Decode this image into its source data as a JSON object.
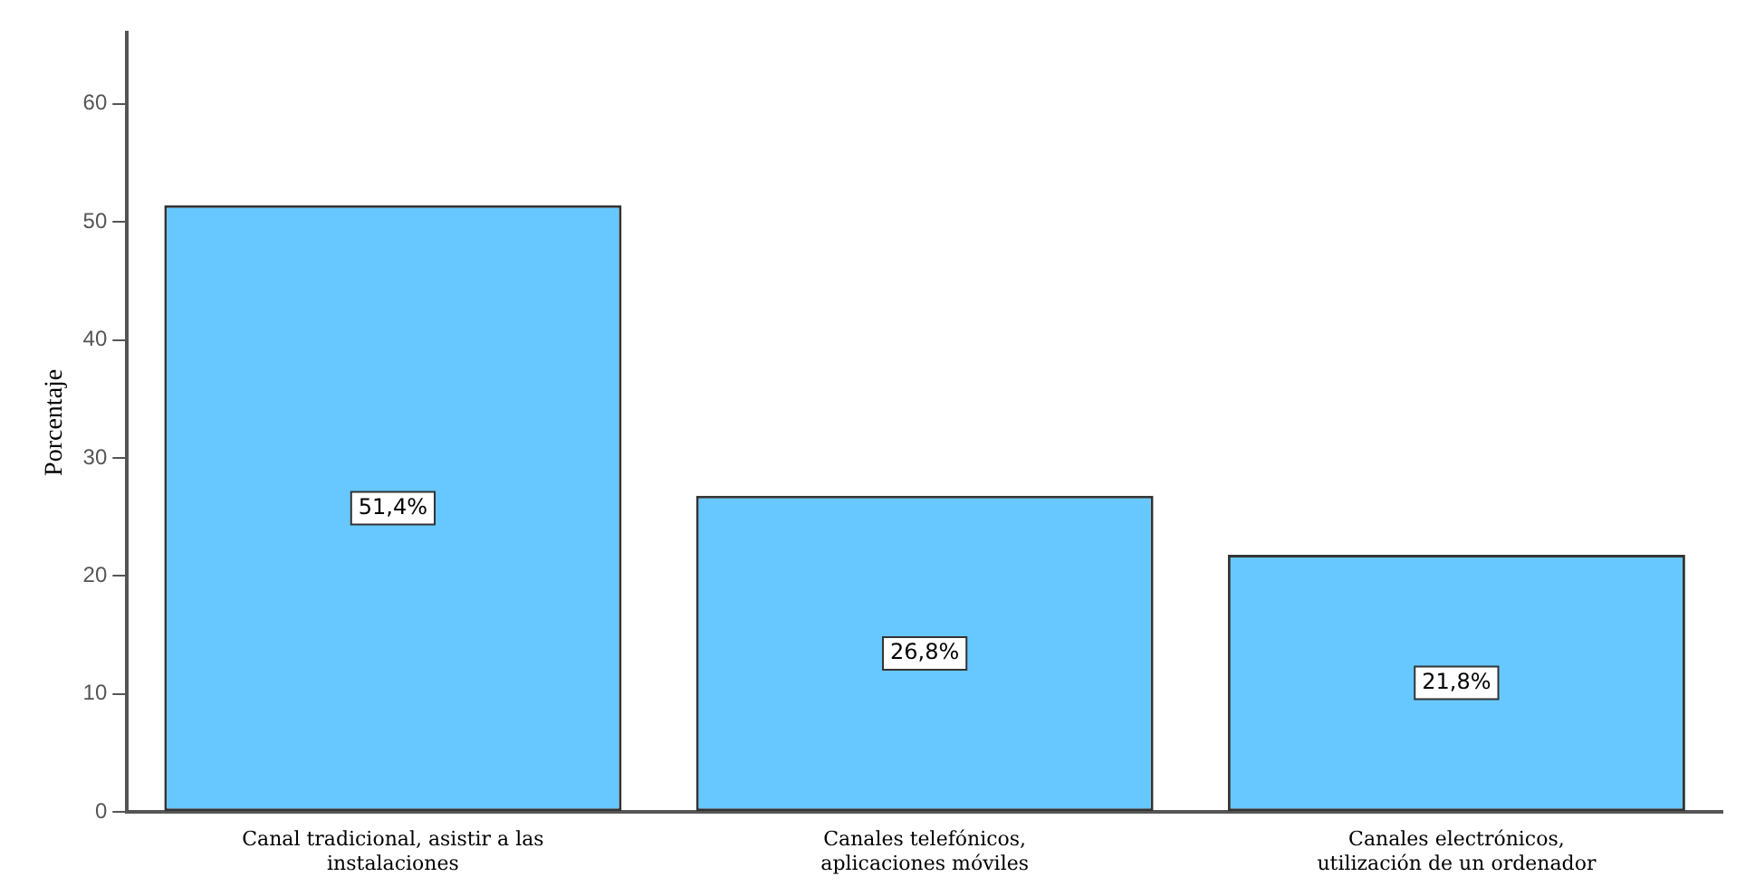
{
  "chart_data": {
    "type": "bar",
    "ylabel": "Porcentaje",
    "categories": [
      "Canal tradicional, asistir a las instalaciones",
      "Canales telefónicos, aplicaciones móviles",
      "Canales electrónicos, utilización de un ordenador"
    ],
    "values": [
      51.4,
      26.8,
      21.8
    ],
    "value_labels": [
      "51,4%",
      "26,8%",
      "21,8%"
    ],
    "color": "#66c8ff",
    "ylim": [
      0,
      66
    ],
    "yticks": [
      0,
      10,
      20,
      30,
      40,
      50,
      60
    ],
    "grid": false,
    "legend": false
  }
}
